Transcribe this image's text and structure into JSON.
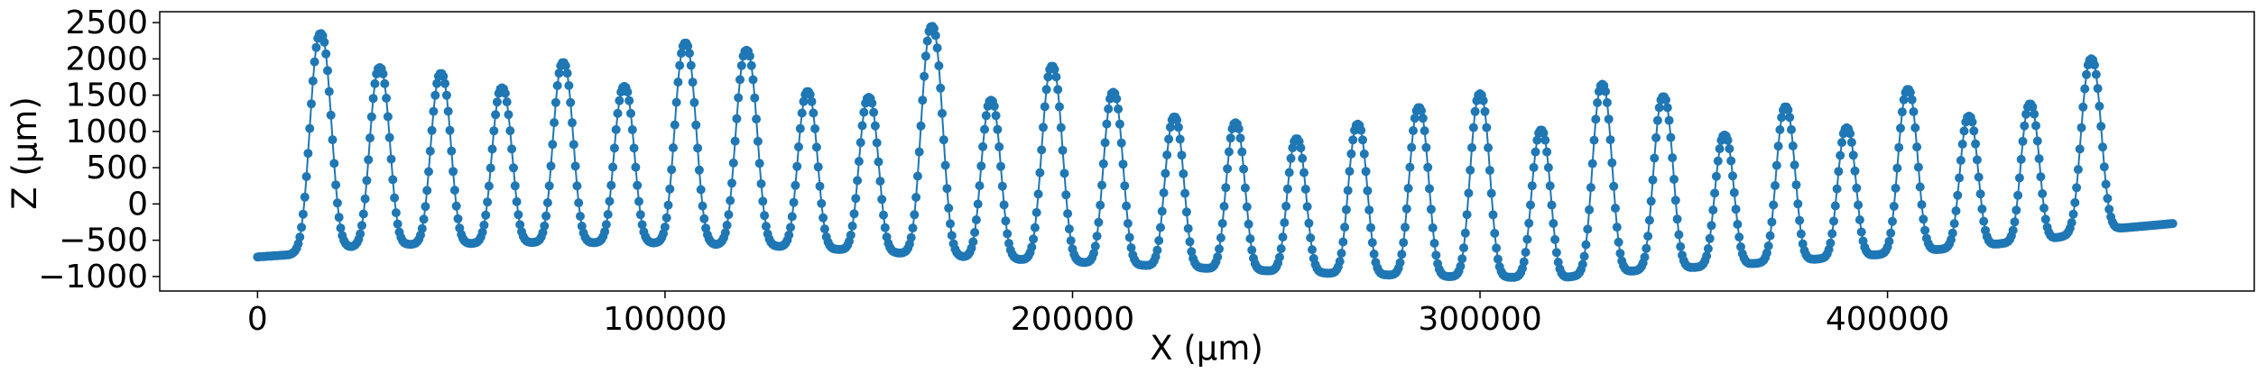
{
  "chart_data": {
    "type": "line",
    "title": "",
    "xlabel": "X (µm)",
    "ylabel": "Z (µm)",
    "xlim": [
      -24000,
      490000
    ],
    "ylim": [
      -1200,
      2650
    ],
    "xticks": [
      0,
      100000,
      200000,
      300000,
      400000
    ],
    "yticks": [
      -1000,
      -500,
      0,
      500,
      1000,
      1500,
      2000,
      2500
    ],
    "grid": false,
    "legend": "none",
    "series": [
      {
        "color": "#1f77b4",
        "marker": "circle",
        "baseline": [
          [
            0,
            -730
          ],
          [
            8000,
            -700
          ],
          [
            12000,
            -650
          ],
          [
            20000,
            -600
          ],
          [
            35000,
            -560
          ],
          [
            70000,
            -530
          ],
          [
            100000,
            -540
          ],
          [
            130000,
            -590
          ],
          [
            150000,
            -650
          ],
          [
            170000,
            -720
          ],
          [
            200000,
            -800
          ],
          [
            230000,
            -880
          ],
          [
            260000,
            -950
          ],
          [
            290000,
            -1000
          ],
          [
            320000,
            -1020
          ],
          [
            330000,
            -950
          ],
          [
            360000,
            -850
          ],
          [
            380000,
            -770
          ],
          [
            400000,
            -690
          ],
          [
            420000,
            -590
          ],
          [
            440000,
            -480
          ],
          [
            452000,
            -360
          ],
          [
            470000,
            -270
          ]
        ],
        "peaks": [
          {
            "x": 15500,
            "z": 2350,
            "w": 3400
          },
          {
            "x": 30000,
            "z": 1880,
            "w": 3200
          },
          {
            "x": 45000,
            "z": 1800,
            "w": 3200
          },
          {
            "x": 60000,
            "z": 1600,
            "w": 3200
          },
          {
            "x": 75000,
            "z": 1950,
            "w": 3200
          },
          {
            "x": 90000,
            "z": 1620,
            "w": 3200
          },
          {
            "x": 105000,
            "z": 2220,
            "w": 3400
          },
          {
            "x": 120000,
            "z": 2120,
            "w": 3400
          },
          {
            "x": 135000,
            "z": 1550,
            "w": 3100
          },
          {
            "x": 150000,
            "z": 1470,
            "w": 3100
          },
          {
            "x": 165500,
            "z": 2450,
            "w": 3400
          },
          {
            "x": 180000,
            "z": 1430,
            "w": 3100
          },
          {
            "x": 195000,
            "z": 1900,
            "w": 3300
          },
          {
            "x": 210000,
            "z": 1540,
            "w": 3100
          },
          {
            "x": 225000,
            "z": 1200,
            "w": 3000
          },
          {
            "x": 240000,
            "z": 1120,
            "w": 3000
          },
          {
            "x": 255000,
            "z": 900,
            "w": 3000
          },
          {
            "x": 270000,
            "z": 1100,
            "w": 3000
          },
          {
            "x": 285000,
            "z": 1330,
            "w": 3100
          },
          {
            "x": 300000,
            "z": 1520,
            "w": 3100
          },
          {
            "x": 315000,
            "z": 1020,
            "w": 3000
          },
          {
            "x": 330000,
            "z": 1650,
            "w": 3100
          },
          {
            "x": 345000,
            "z": 1480,
            "w": 3100
          },
          {
            "x": 360000,
            "z": 950,
            "w": 3000
          },
          {
            "x": 375000,
            "z": 1340,
            "w": 3000
          },
          {
            "x": 390000,
            "z": 1050,
            "w": 2900
          },
          {
            "x": 405000,
            "z": 1580,
            "w": 3100
          },
          {
            "x": 420000,
            "z": 1210,
            "w": 2900
          },
          {
            "x": 435000,
            "z": 1380,
            "w": 2900
          },
          {
            "x": 450000,
            "z": 2000,
            "w": 3200
          }
        ]
      }
    ]
  }
}
